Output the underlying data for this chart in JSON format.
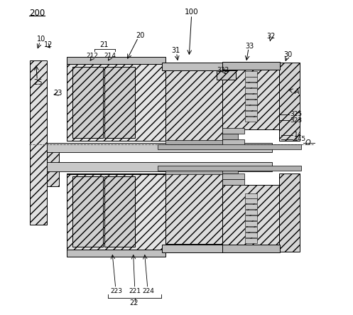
{
  "figure_size": [
    4.97,
    4.43
  ],
  "dpi": 100,
  "bg_color": "#ffffff",
  "line_color": "#000000"
}
